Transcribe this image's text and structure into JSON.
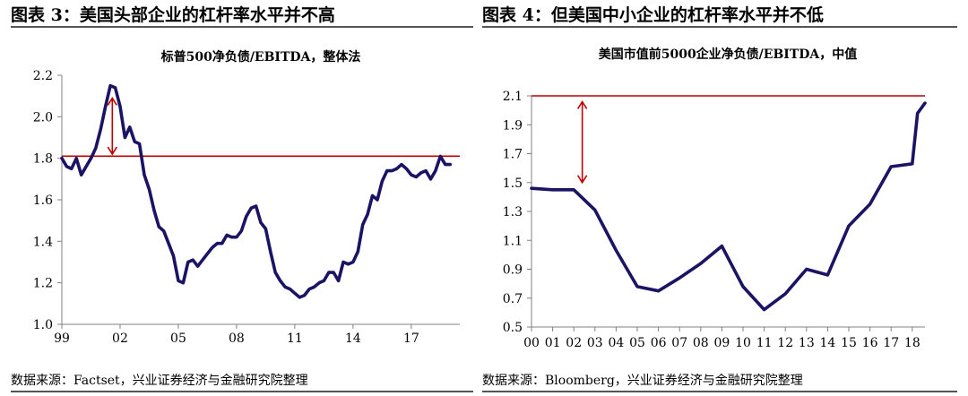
{
  "left": {
    "figure_title": "图表 3：美国头部企业的杠杆率水平并不高",
    "source": "数据来源：Factset，兴业证券经济与金融研究院整理"
  },
  "right": {
    "figure_title": "图表 4：但美国中小企业的杠杆率水平并不低",
    "source": "数据来源：Bloomberg，兴业证券经济与金融研究院整理"
  },
  "colors": {
    "line": "#1b1464",
    "reference": "#c00000",
    "arrow": "#c00000"
  },
  "chart_data": [
    {
      "type": "line",
      "title": "标普500净负债/EBITDA，整体法",
      "xlabel": "",
      "ylabel": "",
      "x_range": [
        1999,
        2019.5
      ],
      "ylim": [
        1.0,
        2.2
      ],
      "yticks": [
        1.0,
        1.2,
        1.4,
        1.6,
        1.8,
        2.0,
        2.2
      ],
      "ytick_labels": [
        "1.0",
        "1.2",
        "1.4",
        "1.6",
        "1.8",
        "2.0",
        "2.2"
      ],
      "xticks": [
        1999,
        2002,
        2005,
        2008,
        2011,
        2014,
        2017
      ],
      "xtick_labels": [
        "99",
        "02",
        "05",
        "08",
        "11",
        "14",
        "17"
      ],
      "grid": false,
      "reference_line": 1.81,
      "arrow": {
        "x": 2001.6,
        "from": 2.09,
        "to": 1.82
      },
      "series": [
        {
          "x": [
            1999.0,
            1999.25,
            1999.5,
            1999.75,
            2000.0,
            2000.25,
            2000.5,
            2000.75,
            2001.0,
            2001.25,
            2001.5,
            2001.75,
            2002.0,
            2002.25,
            2002.5,
            2002.75,
            2003.0,
            2003.25,
            2003.5,
            2003.75,
            2004.0,
            2004.25,
            2004.5,
            2004.75,
            2005.0,
            2005.25,
            2005.5,
            2005.75,
            2006.0,
            2006.25,
            2006.5,
            2006.75,
            2007.0,
            2007.25,
            2007.5,
            2007.75,
            2008.0,
            2008.25,
            2008.5,
            2008.75,
            2009.0,
            2009.25,
            2009.5,
            2009.75,
            2010.0,
            2010.25,
            2010.5,
            2010.75,
            2011.0,
            2011.25,
            2011.5,
            2011.75,
            2012.0,
            2012.25,
            2012.5,
            2012.75,
            2013.0,
            2013.25,
            2013.5,
            2013.75,
            2014.0,
            2014.25,
            2014.5,
            2014.75,
            2015.0,
            2015.25,
            2015.5,
            2015.75,
            2016.0,
            2016.25,
            2016.5,
            2016.75,
            2017.0,
            2017.25,
            2017.5,
            2017.75,
            2018.0,
            2018.25,
            2018.5,
            2018.75,
            2019.0
          ],
          "values": [
            1.8,
            1.76,
            1.75,
            1.8,
            1.72,
            1.76,
            1.8,
            1.85,
            1.94,
            2.05,
            2.15,
            2.14,
            2.05,
            1.9,
            1.95,
            1.88,
            1.87,
            1.72,
            1.65,
            1.55,
            1.47,
            1.45,
            1.39,
            1.33,
            1.21,
            1.2,
            1.3,
            1.31,
            1.28,
            1.31,
            1.34,
            1.37,
            1.39,
            1.39,
            1.43,
            1.42,
            1.42,
            1.45,
            1.52,
            1.56,
            1.57,
            1.49,
            1.46,
            1.35,
            1.25,
            1.21,
            1.18,
            1.17,
            1.15,
            1.13,
            1.14,
            1.17,
            1.18,
            1.2,
            1.21,
            1.25,
            1.25,
            1.21,
            1.3,
            1.29,
            1.3,
            1.35,
            1.48,
            1.53,
            1.62,
            1.6,
            1.69,
            1.74,
            1.74,
            1.75,
            1.77,
            1.75,
            1.72,
            1.71,
            1.73,
            1.74,
            1.7,
            1.74,
            1.81,
            1.77,
            1.77
          ]
        }
      ]
    },
    {
      "type": "line",
      "title": "美国市值前5000企业净负债/EBITDA，中值",
      "xlabel": "",
      "ylabel": "",
      "x_range": [
        2000,
        2018.6
      ],
      "ylim": [
        0.5,
        2.1
      ],
      "yticks": [
        0.5,
        0.7,
        0.9,
        1.1,
        1.3,
        1.5,
        1.7,
        1.9,
        2.1
      ],
      "ytick_labels": [
        "0.5",
        "0.7",
        "0.9",
        "1.1",
        "1.3",
        "1.5",
        "1.7",
        "1.9",
        "2.1"
      ],
      "xticks": [
        2000,
        2001,
        2002,
        2003,
        2004,
        2005,
        2006,
        2007,
        2008,
        2009,
        2010,
        2011,
        2012,
        2013,
        2014,
        2015,
        2016,
        2017,
        2018
      ],
      "xtick_labels": [
        "00",
        "01",
        "02",
        "03",
        "04",
        "05",
        "06",
        "07",
        "08",
        "09",
        "10",
        "11",
        "12",
        "13",
        "14",
        "15",
        "16",
        "17",
        "18"
      ],
      "grid": false,
      "reference_line": 2.1,
      "arrow": {
        "x": 2002.4,
        "from": 2.06,
        "to": 1.5
      },
      "series": [
        {
          "x": [
            2000,
            2001,
            2002,
            2003,
            2004,
            2005,
            2006,
            2007,
            2008,
            2009,
            2010,
            2011,
            2012,
            2013,
            2014,
            2015,
            2016,
            2017,
            2018,
            2018.25,
            2018.6
          ],
          "values": [
            1.46,
            1.45,
            1.45,
            1.31,
            1.03,
            0.78,
            0.75,
            0.84,
            0.94,
            1.06,
            0.78,
            0.62,
            0.73,
            0.9,
            0.86,
            1.2,
            1.35,
            1.61,
            1.63,
            1.98,
            2.05
          ]
        }
      ]
    }
  ]
}
